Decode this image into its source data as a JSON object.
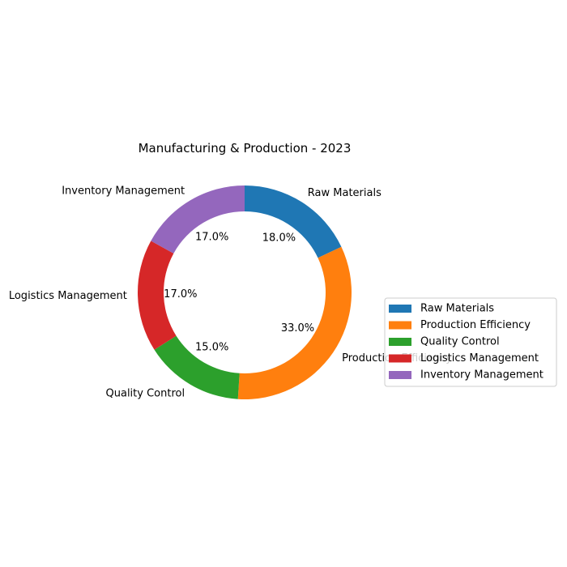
{
  "chart_data": {
    "type": "pie",
    "variant": "donut",
    "title": "Manufacturing & Production - 2023",
    "categories": [
      "Raw Materials",
      "Production Efficiency",
      "Quality Control",
      "Logistics Management",
      "Inventory Management"
    ],
    "values": [
      18,
      33,
      15,
      17,
      17
    ],
    "percent_labels": [
      "18.0%",
      "33.0%",
      "15.0%",
      "17.0%",
      "17.0%"
    ],
    "colors": [
      "#1f77b4",
      "#ff7f0e",
      "#2ca02c",
      "#d62728",
      "#9467bd"
    ],
    "start_angle_deg": 90,
    "direction": "clockwise",
    "legend": {
      "position": "right",
      "entries": [
        "Raw Materials",
        "Production Efficiency",
        "Quality Control",
        "Logistics Management",
        "Inventory Management"
      ]
    }
  }
}
